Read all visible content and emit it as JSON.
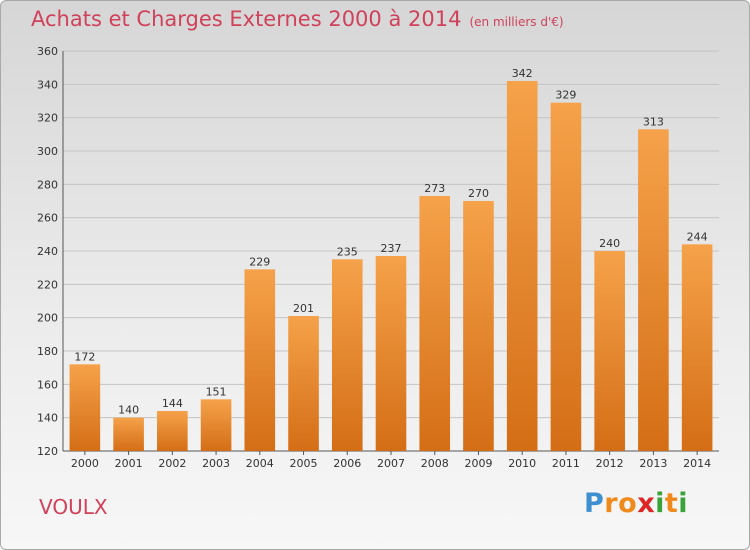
{
  "header": {
    "title": "Achats et Charges Externes 2000 à 2014",
    "subtitle": "(en milliers d'€)"
  },
  "footer": {
    "commune": "VOULX",
    "brand_letters": [
      "P",
      "r",
      "o",
      "x",
      "i",
      "t",
      "i"
    ]
  },
  "colors": {
    "title": "#d0415a",
    "bar_light": "#f5a24a",
    "bar_dark": "#d46e16",
    "grid": "#c4c4c4",
    "brand": [
      "#3d8fcf",
      "#f08a1c",
      "#f08a1c",
      "#e02424",
      "#39a339",
      "#f08a1c",
      "#39a339"
    ]
  },
  "chart_data": {
    "type": "bar",
    "categories": [
      "2000",
      "2001",
      "2002",
      "2003",
      "2004",
      "2005",
      "2006",
      "2007",
      "2008",
      "2009",
      "2010",
      "2011",
      "2012",
      "2013",
      "2014"
    ],
    "values": [
      172,
      140,
      144,
      151,
      229,
      201,
      235,
      237,
      273,
      270,
      342,
      329,
      240,
      313,
      244
    ],
    "title": "Achats et Charges Externes 2000 à 2014",
    "ylim": [
      120,
      360
    ],
    "yticks": [
      120,
      140,
      160,
      180,
      200,
      220,
      240,
      260,
      280,
      300,
      320,
      340,
      360
    ],
    "grid": true,
    "legend": "none"
  }
}
